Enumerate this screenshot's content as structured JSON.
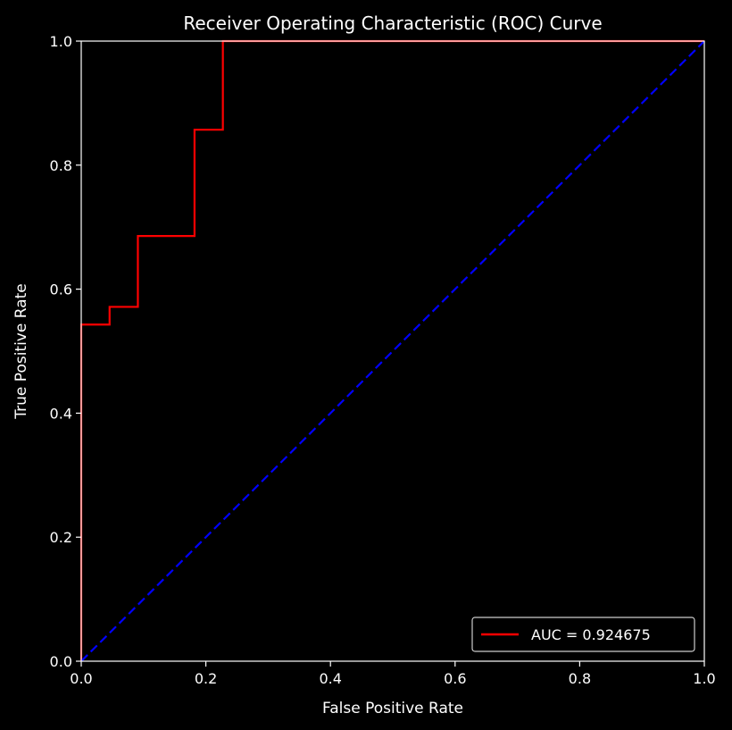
{
  "chart_data": {
    "type": "line",
    "title": "Receiver Operating Characteristic (ROC) Curve",
    "xlabel": "False Positive Rate",
    "ylabel": "True Positive Rate",
    "xlim": [
      0,
      1
    ],
    "ylim": [
      0,
      1
    ],
    "grid": false,
    "legend_position": "bottom-right",
    "background_color": "#000000",
    "text_color": "#ffffff",
    "x_ticks": [
      "0.0",
      "0.2",
      "0.4",
      "0.6",
      "0.8",
      "1.0"
    ],
    "y_ticks": [
      "0.0",
      "0.2",
      "0.4",
      "0.6",
      "0.8",
      "1.0"
    ],
    "series": [
      {
        "name": "AUC = 0.924675",
        "color": "#ff0000",
        "style": "solid",
        "x": [
          0.0,
          0.0,
          0.0,
          0.0455,
          0.0455,
          0.0909,
          0.0909,
          0.1818,
          0.1818,
          0.2273,
          0.2273,
          1.0
        ],
        "y": [
          0.0,
          0.0,
          0.5429,
          0.5429,
          0.5714,
          0.5714,
          0.6857,
          0.6857,
          0.8571,
          0.8571,
          1.0,
          1.0
        ]
      },
      {
        "color": "#0000ff",
        "style": "dashed",
        "x": [
          0.0,
          1.0
        ],
        "y": [
          0.0,
          1.0
        ]
      }
    ]
  }
}
